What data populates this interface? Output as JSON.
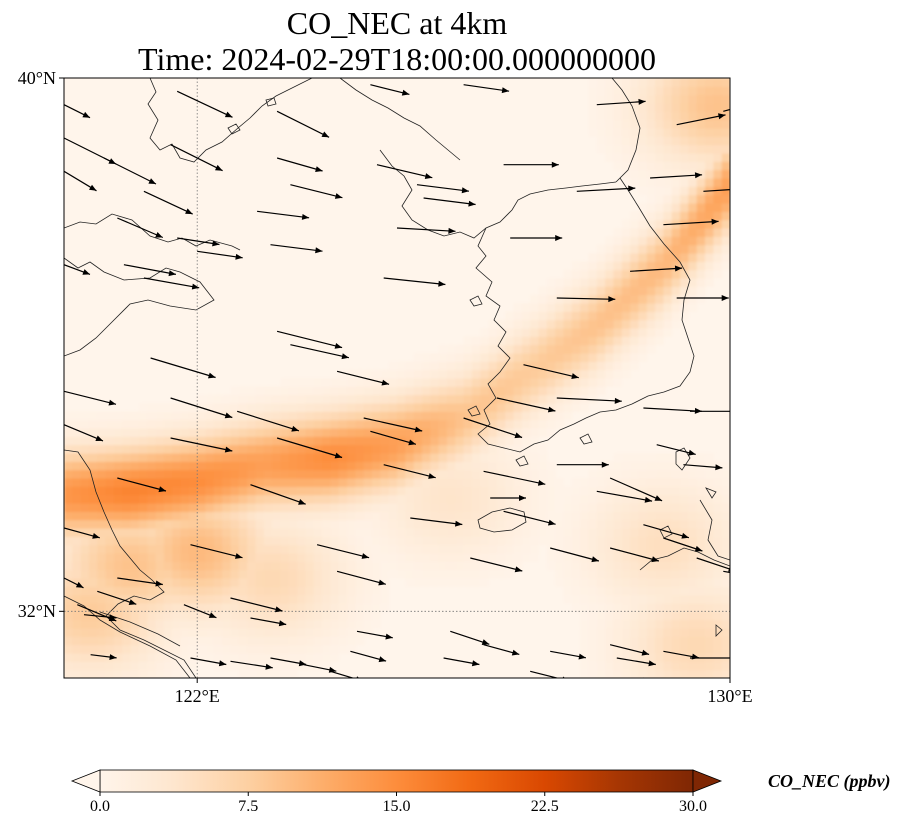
{
  "title": {
    "line1": "CO_NEC at 4km",
    "line2": "Time: 2024-02-29T18:00:00.000000000"
  },
  "map": {
    "extent": {
      "lon_min": 120,
      "lon_max": 130,
      "lat_min": 31,
      "lat_max": 40
    },
    "gridlines": {
      "style": "dotted",
      "color": "#777777",
      "lons": [
        122
      ],
      "lats": [
        32
      ]
    },
    "lat_ticks": [
      {
        "value": 40,
        "label": "40°N"
      },
      {
        "value": 32,
        "label": "32°N"
      }
    ],
    "lon_ticks": [
      {
        "value": 122,
        "label": "122°E"
      },
      {
        "value": 130,
        "label": "130°E"
      }
    ],
    "plume_core": [
      [
        120.0,
        33.75,
        14
      ],
      [
        121.0,
        33.8,
        16
      ],
      [
        122.0,
        33.95,
        15
      ],
      [
        123.0,
        34.2,
        13
      ],
      [
        124.0,
        34.3,
        15
      ],
      [
        125.0,
        34.5,
        13
      ],
      [
        126.0,
        34.9,
        9
      ],
      [
        127.0,
        35.6,
        8
      ],
      [
        128.0,
        36.3,
        9
      ],
      [
        129.0,
        37.2,
        10
      ],
      [
        130.0,
        38.4,
        13
      ]
    ],
    "regional_background": [
      [
        120.4,
        32.0,
        8
      ],
      [
        121.0,
        32.7,
        9
      ],
      [
        122.0,
        32.9,
        10
      ],
      [
        123.1,
        32.5,
        6
      ],
      [
        129.5,
        31.5,
        6
      ],
      [
        129.0,
        33.0,
        5
      ],
      [
        125.8,
        33.7,
        4
      ],
      [
        129.8,
        39.6,
        9
      ]
    ]
  },
  "wind_vectors": [
    [
      120.0,
      39.6,
      0.4,
      -0.2
    ],
    [
      121.7,
      39.8,
      0.85,
      -0.4
    ],
    [
      123.2,
      39.5,
      0.8,
      -0.4
    ],
    [
      124.6,
      39.9,
      0.6,
      -0.15
    ],
    [
      126.0,
      39.9,
      0.7,
      -0.1
    ],
    [
      128.0,
      39.6,
      0.75,
      0.05
    ],
    [
      129.2,
      39.3,
      0.75,
      0.15
    ],
    [
      129.9,
      39.5,
      0.55,
      0.15
    ],
    [
      120.0,
      39.1,
      0.8,
      -0.4
    ],
    [
      120.6,
      38.8,
      0.8,
      -0.4
    ],
    [
      121.6,
      39.0,
      0.8,
      -0.4
    ],
    [
      123.2,
      38.8,
      0.7,
      -0.2
    ],
    [
      124.7,
      38.7,
      0.85,
      -0.2
    ],
    [
      125.3,
      38.4,
      0.8,
      -0.1
    ],
    [
      126.6,
      38.7,
      0.85,
      0.0
    ],
    [
      128.8,
      38.5,
      0.8,
      0.05
    ],
    [
      129.6,
      38.3,
      0.8,
      0.05
    ],
    [
      120.0,
      38.6,
      0.5,
      -0.3
    ],
    [
      121.2,
      38.3,
      0.75,
      -0.35
    ],
    [
      123.4,
      38.4,
      0.8,
      -0.2
    ],
    [
      125.4,
      38.2,
      0.8,
      -0.1
    ],
    [
      127.7,
      38.3,
      0.9,
      0.05
    ],
    [
      120.8,
      37.9,
      0.7,
      -0.3
    ],
    [
      122.9,
      38.0,
      0.8,
      -0.1
    ],
    [
      125.0,
      37.75,
      0.9,
      -0.05
    ],
    [
      126.7,
      37.6,
      0.8,
      0.0
    ],
    [
      129.0,
      37.8,
      0.85,
      0.05
    ],
    [
      121.7,
      37.6,
      0.65,
      -0.1
    ],
    [
      122.0,
      37.4,
      0.7,
      -0.1
    ],
    [
      123.1,
      37.5,
      0.8,
      -0.1
    ],
    [
      128.5,
      37.1,
      0.8,
      0.05
    ],
    [
      120.9,
      37.2,
      0.8,
      -0.15
    ],
    [
      121.2,
      37.0,
      0.85,
      -0.15
    ],
    [
      124.8,
      37.0,
      0.95,
      -0.1
    ],
    [
      127.4,
      36.7,
      0.9,
      -0.02
    ],
    [
      129.2,
      36.7,
      0.8,
      0.0
    ],
    [
      120.0,
      37.2,
      0.4,
      -0.15
    ],
    [
      123.2,
      36.2,
      1.0,
      -0.25
    ],
    [
      123.4,
      36.0,
      0.9,
      -0.2
    ],
    [
      121.3,
      35.8,
      1.0,
      -0.3
    ],
    [
      124.1,
      35.6,
      0.8,
      -0.2
    ],
    [
      126.9,
      35.7,
      0.85,
      -0.2
    ],
    [
      127.4,
      35.2,
      1.0,
      -0.05
    ],
    [
      129.4,
      35.0,
      0.8,
      0.0
    ],
    [
      120.0,
      35.3,
      0.8,
      -0.2
    ],
    [
      121.6,
      35.2,
      0.95,
      -0.3
    ],
    [
      122.6,
      35.0,
      0.95,
      -0.3
    ],
    [
      124.5,
      34.9,
      0.9,
      -0.2
    ],
    [
      126.5,
      35.2,
      0.9,
      -0.2
    ],
    [
      128.7,
      35.05,
      0.9,
      -0.05
    ],
    [
      120.0,
      34.8,
      0.6,
      -0.25
    ],
    [
      121.6,
      34.6,
      0.95,
      -0.2
    ],
    [
      123.2,
      34.6,
      1.0,
      -0.3
    ],
    [
      126.0,
      34.9,
      0.9,
      -0.3
    ],
    [
      127.4,
      34.2,
      0.8,
      0.0
    ],
    [
      128.9,
      34.5,
      0.6,
      -0.15
    ],
    [
      129.3,
      34.2,
      0.6,
      -0.05
    ],
    [
      124.6,
      34.7,
      0.7,
      -0.2
    ],
    [
      126.3,
      34.1,
      0.95,
      -0.2
    ],
    [
      128.2,
      34.0,
      0.8,
      -0.35
    ],
    [
      120.8,
      34.0,
      0.75,
      -0.2
    ],
    [
      122.8,
      33.9,
      0.85,
      -0.3
    ],
    [
      124.8,
      34.2,
      0.8,
      -0.2
    ],
    [
      126.6,
      33.5,
      0.8,
      -0.2
    ],
    [
      128.0,
      33.8,
      0.85,
      -0.15
    ],
    [
      120.0,
      33.25,
      0.55,
      -0.15
    ],
    [
      121.9,
      33.0,
      0.8,
      -0.2
    ],
    [
      123.8,
      33.0,
      0.8,
      -0.2
    ],
    [
      127.3,
      32.95,
      0.75,
      -0.2
    ],
    [
      129.5,
      32.8,
      0.6,
      -0.2
    ],
    [
      129.9,
      32.6,
      0.55,
      -0.1
    ],
    [
      122.5,
      32.2,
      0.8,
      -0.2
    ],
    [
      124.1,
      32.6,
      0.75,
      -0.2
    ],
    [
      126.1,
      32.8,
      0.8,
      -0.2
    ],
    [
      128.2,
      32.95,
      0.75,
      -0.2
    ],
    [
      120.8,
      32.5,
      0.7,
      -0.1
    ],
    [
      121.8,
      32.1,
      0.5,
      -0.2
    ],
    [
      122.8,
      31.9,
      0.55,
      -0.1
    ],
    [
      124.4,
      31.7,
      0.55,
      -0.1
    ],
    [
      125.8,
      31.7,
      0.6,
      -0.2
    ],
    [
      126.3,
      31.5,
      0.55,
      -0.15
    ],
    [
      127.3,
      31.4,
      0.55,
      -0.1
    ],
    [
      128.2,
      31.5,
      0.6,
      -0.15
    ],
    [
      129.0,
      31.4,
      0.55,
      -0.1
    ],
    [
      120.0,
      32.5,
      0.3,
      -0.15
    ],
    [
      120.2,
      32.1,
      0.6,
      -0.25
    ],
    [
      120.5,
      32.3,
      0.6,
      -0.2
    ],
    [
      120.3,
      31.95,
      0.5,
      -0.05
    ],
    [
      122.5,
      31.25,
      0.65,
      -0.1
    ],
    [
      123.1,
      31.3,
      0.55,
      -0.1
    ],
    [
      124.3,
      31.4,
      0.55,
      -0.15
    ],
    [
      125.7,
      31.3,
      0.55,
      -0.1
    ],
    [
      127.0,
      31.1,
      0.6,
      -0.15
    ],
    [
      128.3,
      31.3,
      0.6,
      -0.1
    ],
    [
      129.4,
      31.3,
      0.9,
      0.0
    ],
    [
      120.4,
      31.35,
      0.4,
      -0.05
    ],
    [
      121.9,
      31.3,
      0.55,
      -0.1
    ],
    [
      123.6,
      31.2,
      0.5,
      -0.1
    ],
    [
      124.0,
      31.1,
      0.5,
      -0.15
    ],
    [
      128.7,
      31.0,
      0.5,
      -0.15
    ],
    [
      126.4,
      33.7,
      0.55,
      0.0
    ],
    [
      125.2,
      33.4,
      0.8,
      -0.1
    ],
    [
      128.7,
      33.3,
      0.7,
      -0.2
    ],
    [
      129.0,
      33.1,
      0.6,
      -0.2
    ]
  ],
  "colorbar": {
    "label": "CO_NEC (ppbv)",
    "vmin": 0.0,
    "vmax": 30.0,
    "ticks": [
      {
        "value": 0,
        "label": "0.0"
      },
      {
        "value": 7.5,
        "label": "7.5"
      },
      {
        "value": 15,
        "label": "15.0"
      },
      {
        "value": 22.5,
        "label": "22.5"
      },
      {
        "value": 30,
        "label": "30.0"
      }
    ],
    "extend": "both",
    "colors": [
      "#fff5eb",
      "#fee6ce",
      "#fdd0a2",
      "#fdae6b",
      "#fd8d3c",
      "#f16913",
      "#d94801",
      "#a63603",
      "#7f2704"
    ]
  },
  "colormap": [
    [
      0.0,
      "#fff5eb"
    ],
    [
      0.125,
      "#fee6ce"
    ],
    [
      0.25,
      "#fdd0a2"
    ],
    [
      0.375,
      "#fdae6b"
    ],
    [
      0.5,
      "#fd8d3c"
    ],
    [
      0.625,
      "#f16913"
    ],
    [
      0.75,
      "#d94801"
    ],
    [
      0.875,
      "#a63603"
    ],
    [
      1.0,
      "#7f2704"
    ]
  ],
  "vector_color": "#000000",
  "coast_color": "#222222"
}
